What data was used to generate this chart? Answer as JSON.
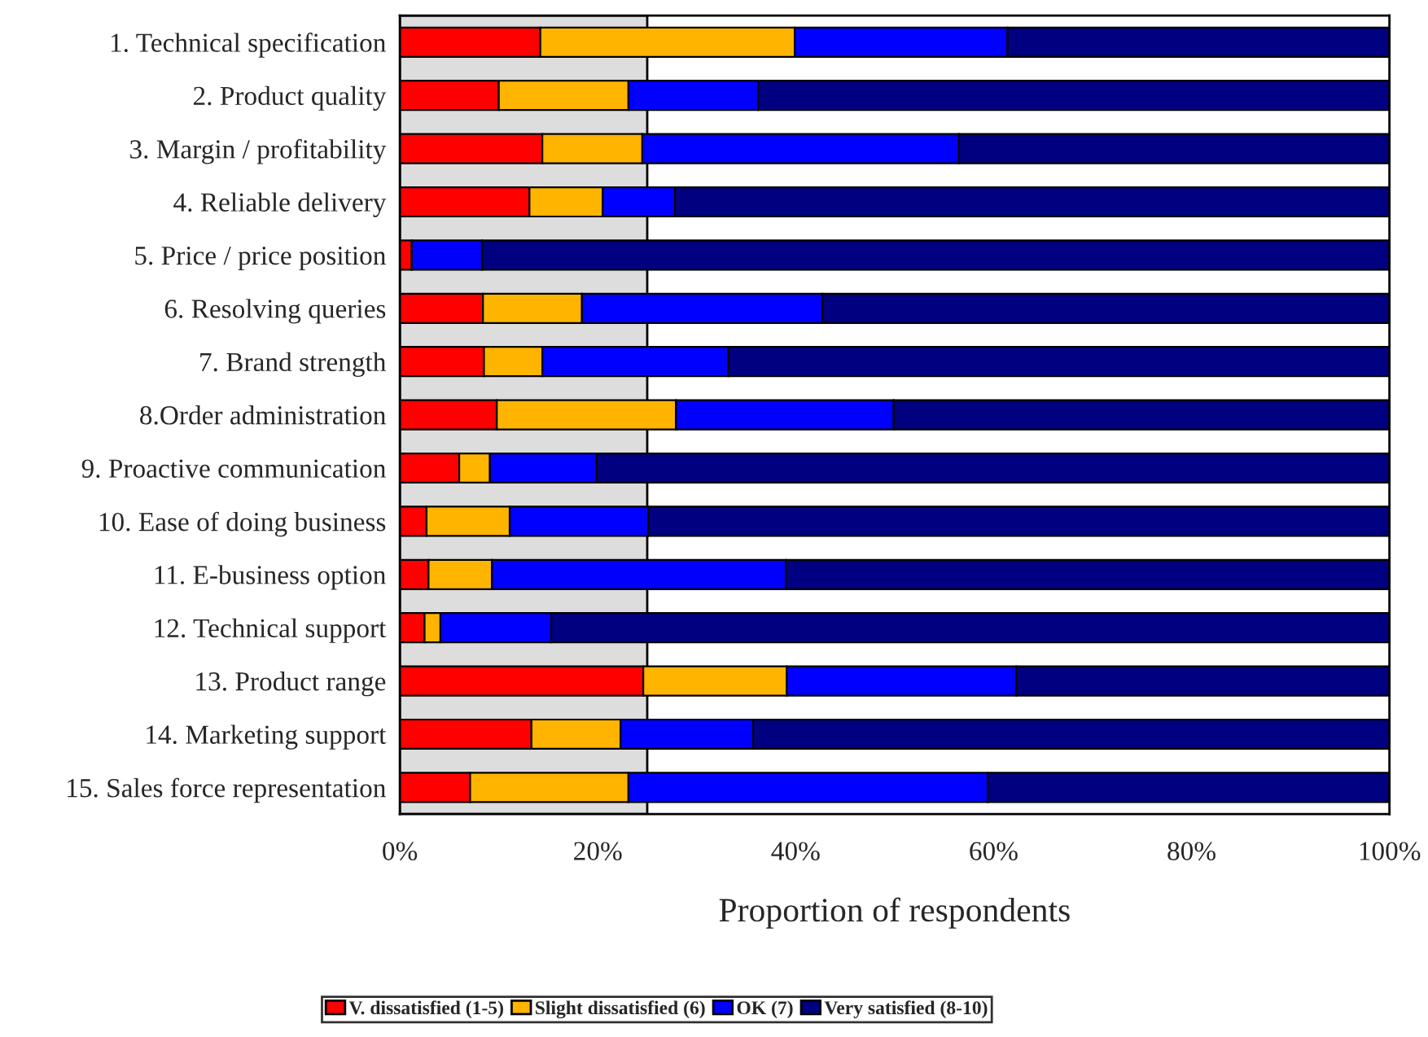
{
  "chart_data": {
    "type": "bar",
    "orientation": "horizontal",
    "stacked": true,
    "xlabel": "Proportion of respondents",
    "categories": [
      "1. Technical specification",
      "2. Product quality",
      "3. Margin / profitability",
      "4. Reliable delivery",
      "5. Price / price position",
      "6. Resolving queries",
      "7. Brand strength",
      "8.Order administration",
      "9. Proactive communication",
      "10. Ease of doing business",
      "11. E-business option",
      "12. Technical support",
      "13. Product range",
      "14. Marketing support",
      "15. Sales force representation"
    ],
    "series": [
      {
        "name": "V. dissatisfied (1-5)",
        "color": "#ff0000",
        "values": [
          14.2,
          10.0,
          14.4,
          13.1,
          1.2,
          8.4,
          8.5,
          9.8,
          6.0,
          2.7,
          2.9,
          2.5,
          24.6,
          13.3,
          7.1
        ]
      },
      {
        "name": "Slight dissatisfied (6)",
        "color": "#ffb400",
        "values": [
          25.7,
          13.1,
          10.1,
          7.4,
          null,
          10.0,
          5.9,
          18.1,
          3.1,
          8.4,
          6.4,
          1.6,
          14.5,
          9.0,
          16.0
        ]
      },
      {
        "name": "OK (7)",
        "color": "#0000ff",
        "values": [
          21.5,
          13.1,
          32.0,
          7.3,
          7.1,
          24.3,
          18.8,
          22.0,
          10.8,
          14.0,
          29.7,
          11.2,
          23.2,
          13.4,
          36.3
        ]
      },
      {
        "name": "Very satisfied (8-10)",
        "color": "#000080",
        "values": [
          38.6,
          63.8,
          43.5,
          72.2,
          91.7,
          57.3,
          66.8,
          50.1,
          80.1,
          74.9,
          61.0,
          84.7,
          37.7,
          64.3,
          40.6
        ]
      }
    ],
    "xlim": [
      0,
      100
    ],
    "xticks": [
      {
        "value": 0,
        "label": "0%"
      },
      {
        "value": 20,
        "label": "20%"
      },
      {
        "value": 40,
        "label": "40%"
      },
      {
        "value": 60,
        "label": "60%"
      },
      {
        "value": 80,
        "label": "80%"
      },
      {
        "value": 100,
        "label": "100%"
      }
    ],
    "bands": [
      {
        "axis": "x",
        "from": 0,
        "to": 25,
        "color": "#dddddd"
      }
    ],
    "legend": "bottom",
    "grid": false
  }
}
